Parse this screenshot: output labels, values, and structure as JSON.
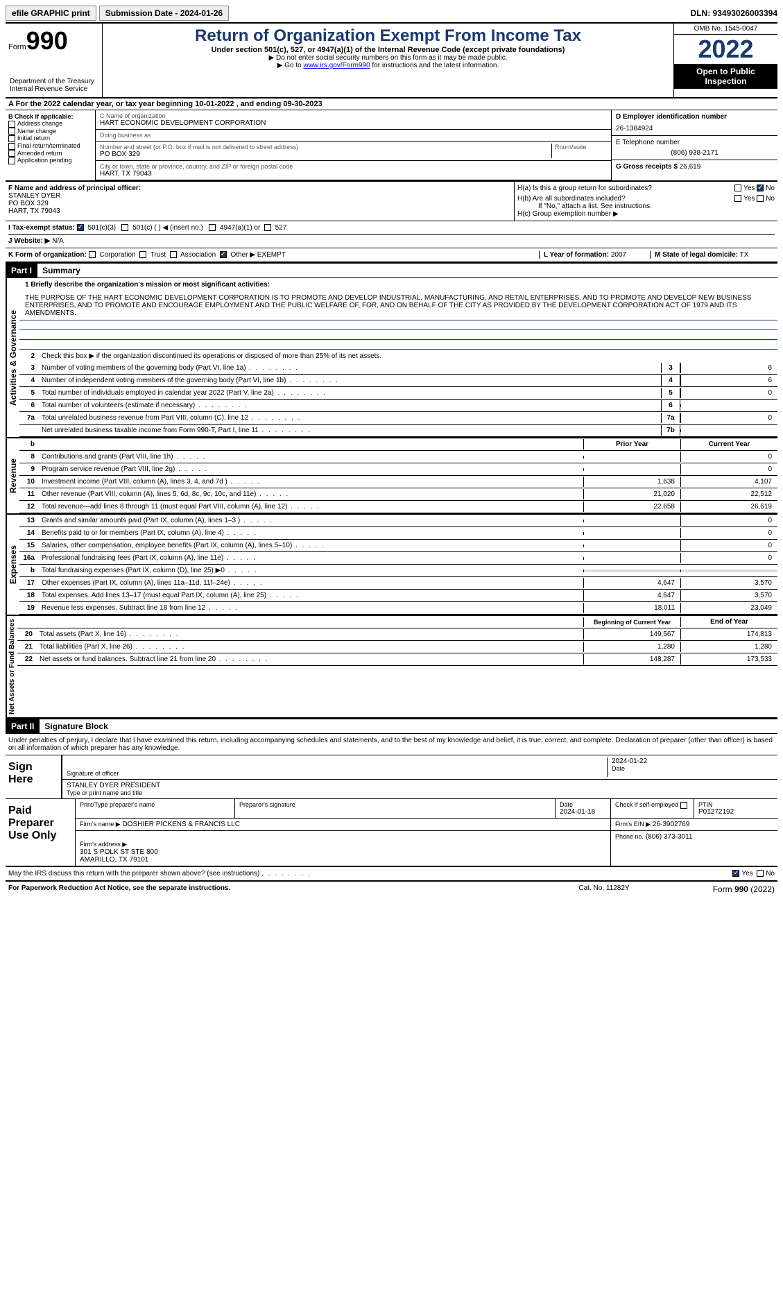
{
  "topbar": {
    "efile": "efile GRAPHIC print",
    "submission": "Submission Date - 2024-01-26",
    "dln": "DLN: 93493026003394"
  },
  "header": {
    "form_label": "Form",
    "form_num": "990",
    "title": "Return of Organization Exempt From Income Tax",
    "subtitle": "Under section 501(c), 527, or 4947(a)(1) of the Internal Revenue Code (except private foundations)",
    "note1": "▶ Do not enter social security numbers on this form as it may be made public.",
    "note2_pre": "▶ Go to ",
    "note2_link": "www.irs.gov/Form990",
    "note2_post": " for instructions and the latest information.",
    "dept": "Department of the Treasury\nInternal Revenue Service",
    "omb": "OMB No. 1545-0047",
    "year": "2022",
    "inspection": "Open to Public Inspection"
  },
  "section_a": {
    "text": "A  For the 2022 calendar year, or tax year beginning 10-01-2022     , and ending 09-30-2023"
  },
  "section_b": {
    "label": "B Check if applicable:",
    "items": [
      "Address change",
      "Name change",
      "Initial return",
      "Final return/terminated",
      "Amended return",
      "Application pending"
    ]
  },
  "section_c": {
    "name_label": "C Name of organization",
    "name": "HART ECONOMIC DEVELOPMENT CORPORATION",
    "dba_label": "Doing business as",
    "street_label": "Number and street (or P.O. box if mail is not delivered to street address)",
    "street": "PO BOX 329",
    "room_label": "Room/suite",
    "city_label": "City or town, state or province, country, and ZIP or foreign postal code",
    "city": "HART, TX  79043"
  },
  "section_d": {
    "label": "D Employer identification number",
    "value": "26-1384924"
  },
  "section_e": {
    "label": "E Telephone number",
    "value": "(806) 938-2171"
  },
  "section_g": {
    "label": "G Gross receipts $",
    "value": "26,619"
  },
  "section_f": {
    "label": "F  Name and address of principal officer:",
    "name": "STANLEY DYER",
    "street": "PO BOX 329",
    "city": "HART, TX  79043"
  },
  "section_h": {
    "ha_label": "H(a)  Is this a group return for subordinates?",
    "hb_label": "H(b)  Are all subordinates included?",
    "hb_note": "If \"No,\" attach a list. See instructions.",
    "hc_label": "H(c)  Group exemption number ▶"
  },
  "section_i": {
    "label": "I   Tax-exempt status:",
    "opt1": "501(c)(3)",
    "opt2": "501(c) (  ) ◀ (insert no.)",
    "opt3": "4947(a)(1) or",
    "opt4": "527"
  },
  "section_j": {
    "label": "J   Website: ▶",
    "value": "N/A"
  },
  "section_k": {
    "label": "K Form of organization:",
    "opts": [
      "Corporation",
      "Trust",
      "Association",
      "Other ▶"
    ],
    "other_val": "EXEMPT"
  },
  "section_l": {
    "label": "L Year of formation:",
    "value": "2007"
  },
  "section_m": {
    "label": "M State of legal domicile:",
    "value": "TX"
  },
  "part1": {
    "header": "Part I",
    "title": "Summary",
    "line1_label": "1  Briefly describe the organization's mission or most significant activities:",
    "mission": "THE PURPOSE OF THE HART ECONOMIC DEVELOPMENT CORPORATION IS TO PROMOTE AND DEVELOP INDUSTRIAL, MANUFACTURING, AND RETAIL ENTERPRISES, AND TO PROMOTE AND DEVELOP NEW BUSINESS ENTERPRISES, AND TO PROMOTE AND ENCOURAGE EMPLOYMENT AND THE PUBLIC WELFARE OF, FOR, AND ON BEHALF OF THE CITY AS PROVIDED BY THE DEVELOPMENT CORPORATION ACT OF 1979 AND ITS AMENDMENTS.",
    "line2": "Check this box ▶     if the organization discontinued its operations or disposed of more than 25% of its net assets.",
    "lines_ag": [
      {
        "n": "3",
        "t": "Number of voting members of the governing body (Part VI, line 1a)",
        "box": "3",
        "v": "6"
      },
      {
        "n": "4",
        "t": "Number of independent voting members of the governing body (Part VI, line 1b)",
        "box": "4",
        "v": "6"
      },
      {
        "n": "5",
        "t": "Total number of individuals employed in calendar year 2022 (Part V, line 2a)",
        "box": "5",
        "v": "0"
      },
      {
        "n": "6",
        "t": "Total number of volunteers (estimate if necessary)",
        "box": "6",
        "v": ""
      },
      {
        "n": "7a",
        "t": "Total unrelated business revenue from Part VIII, column (C), line 12",
        "box": "7a",
        "v": "0"
      },
      {
        "n": "",
        "t": "Net unrelated business taxable income from Form 990-T, Part I, line 11",
        "box": "7b",
        "v": ""
      }
    ],
    "col_prior": "Prior Year",
    "col_current": "Current Year",
    "revenue_label": "Revenue",
    "revenue": [
      {
        "n": "8",
        "t": "Contributions and grants (Part VIII, line 1h)",
        "p": "",
        "c": "0"
      },
      {
        "n": "9",
        "t": "Program service revenue (Part VIII, line 2g)",
        "p": "",
        "c": "0"
      },
      {
        "n": "10",
        "t": "Investment income (Part VIII, column (A), lines 3, 4, and 7d )",
        "p": "1,638",
        "c": "4,107"
      },
      {
        "n": "11",
        "t": "Other revenue (Part VIII, column (A), lines 5, 6d, 8c, 9c, 10c, and 11e)",
        "p": "21,020",
        "c": "22,512"
      },
      {
        "n": "12",
        "t": "Total revenue—add lines 8 through 11 (must equal Part VIII, column (A), line 12)",
        "p": "22,658",
        "c": "26,619"
      }
    ],
    "expenses_label": "Expenses",
    "expenses": [
      {
        "n": "13",
        "t": "Grants and similar amounts paid (Part IX, column (A), lines 1–3 )",
        "p": "",
        "c": "0"
      },
      {
        "n": "14",
        "t": "Benefits paid to or for members (Part IX, column (A), line 4)",
        "p": "",
        "c": "0"
      },
      {
        "n": "15",
        "t": "Salaries, other compensation, employee benefits (Part IX, column (A), lines 5–10)",
        "p": "",
        "c": "0"
      },
      {
        "n": "16a",
        "t": "Professional fundraising fees (Part IX, column (A), line 11e)",
        "p": "",
        "c": "0"
      },
      {
        "n": "b",
        "t": "Total fundraising expenses (Part IX, column (D), line 25) ▶0",
        "p": "shaded",
        "c": "shaded"
      },
      {
        "n": "17",
        "t": "Other expenses (Part IX, column (A), lines 11a–11d, 11f–24e)",
        "p": "4,647",
        "c": "3,570"
      },
      {
        "n": "18",
        "t": "Total expenses. Add lines 13–17 (must equal Part IX, column (A), line 25)",
        "p": "4,647",
        "c": "3,570"
      },
      {
        "n": "19",
        "t": "Revenue less expenses. Subtract line 18 from line 12",
        "p": "18,011",
        "c": "23,049"
      }
    ],
    "netassets_label": "Net Assets or Fund Balances",
    "col_begin": "Beginning of Current Year",
    "col_end": "End of Year",
    "netassets": [
      {
        "n": "20",
        "t": "Total assets (Part X, line 16)",
        "p": "149,567",
        "c": "174,813"
      },
      {
        "n": "21",
        "t": "Total liabilities (Part X, line 26)",
        "p": "1,280",
        "c": "1,280"
      },
      {
        "n": "22",
        "t": "Net assets or fund balances. Subtract line 21 from line 20",
        "p": "148,287",
        "c": "173,533"
      }
    ],
    "ag_label": "Activities & Governance"
  },
  "part2": {
    "header": "Part II",
    "title": "Signature Block",
    "declare": "Under penalties of perjury, I declare that I have examined this return, including accompanying schedules and statements, and to the best of my knowledge and belief, it is true, correct, and complete. Declaration of preparer (other than officer) is based on all information of which preparer has any knowledge.",
    "sign_here": "Sign Here",
    "sig_officer": "Signature of officer",
    "sig_date": "2024-01-22",
    "date_label": "Date",
    "name_title": "STANLEY DYER  PRESIDENT",
    "name_label": "Type or print name and title",
    "paid_prep": "Paid Preparer Use Only",
    "prep_name_label": "Print/Type preparer's name",
    "prep_sig_label": "Preparer's signature",
    "prep_date_label": "Date",
    "prep_date": "2024-01-18",
    "check_label": "Check         if self-employed",
    "ptin_label": "PTIN",
    "ptin": "P01272192",
    "firm_name_label": "Firm's name     ▶",
    "firm_name": "DOSHIER PICKENS & FRANCIS LLC",
    "firm_ein_label": "Firm's EIN ▶",
    "firm_ein": "26-3902769",
    "firm_addr_label": "Firm's address ▶",
    "firm_addr": "301 S POLK ST STE 800\nAMARILLO, TX  79101",
    "phone_label": "Phone no.",
    "phone": "(806) 373-3011",
    "discuss": "May the IRS discuss this return with the preparer shown above? (see instructions)"
  },
  "footer": {
    "left": "For Paperwork Reduction Act Notice, see the separate instructions.",
    "mid": "Cat. No. 11282Y",
    "right_pre": "Form ",
    "right_bold": "990",
    "right_post": " (2022)"
  },
  "yesno": {
    "yes": "Yes",
    "no": "No"
  }
}
